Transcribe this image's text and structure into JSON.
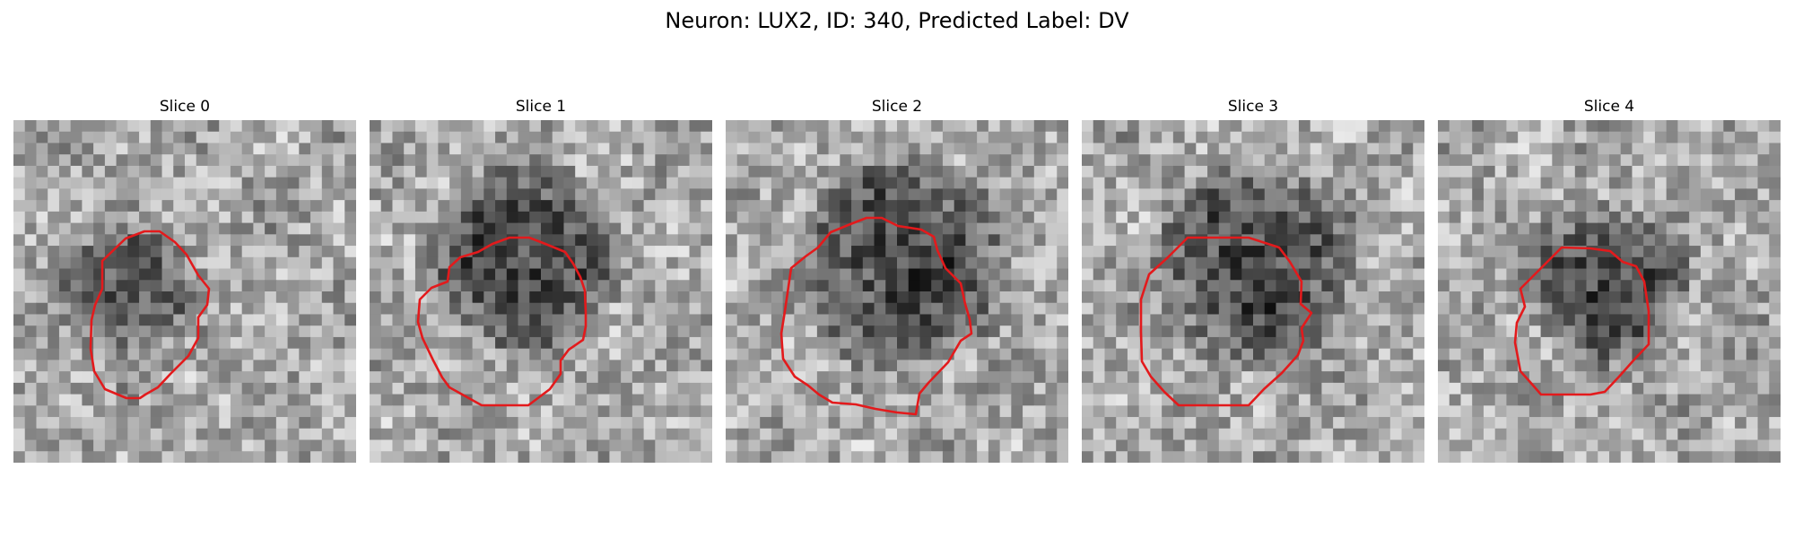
{
  "figure": {
    "title": "Neuron: LUX2, ID: 340, Predicted Label: DV"
  },
  "slices": [
    {
      "label": "Slice 0"
    },
    {
      "label": "Slice 1"
    },
    {
      "label": "Slice 2"
    },
    {
      "label": "Slice 3"
    },
    {
      "label": "Slice 4"
    }
  ],
  "colors": {
    "contour": "#e31a1c",
    "background": "#ffffff"
  }
}
